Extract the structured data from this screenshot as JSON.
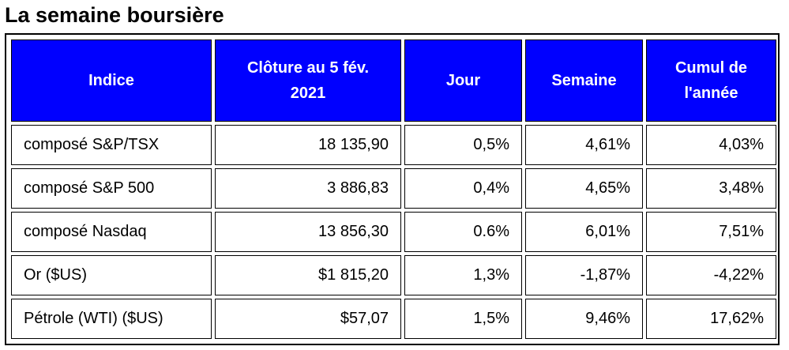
{
  "title": "La semaine boursière",
  "table": {
    "headers": [
      "Indice",
      "Clôture au 5 fév. 2021",
      "Jour",
      "Semaine",
      "Cumul de l'année"
    ],
    "rows": [
      [
        "composé S&P/TSX",
        "18 135,90",
        "0,5%",
        "4,61%",
        "4,03%"
      ],
      [
        "composé S&P 500",
        "3 886,83",
        "0,4%",
        "4,65%",
        "3,48%"
      ],
      [
        "composé Nasdaq",
        "13 856,30",
        "0.6%",
        "6,01%",
        "7,51%"
      ],
      [
        "Or ($US)",
        "$1 815,20",
        "1,3%",
        "-1,87%",
        "-4,22%"
      ],
      [
        "Pétrole (WTI) ($US)",
        "$57,07",
        "1,5%",
        "9,46%",
        "17,62%"
      ]
    ]
  },
  "colors": {
    "header_background": "#0000ff",
    "header_text": "#ffffff"
  }
}
